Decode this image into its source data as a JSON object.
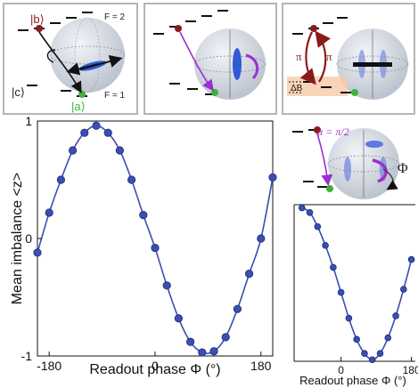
{
  "panel_a": {
    "state_b": "|b⟩",
    "state_c": "|c⟩",
    "state_a": "|a⟩",
    "f2": "F = 2",
    "f1": "F = 1"
  },
  "panel_c": {
    "pi_left": "π",
    "pi_right": "π",
    "delta_b": "ΔB"
  },
  "panel_d": {
    "alpha": "α = π/2",
    "phi": "Φ"
  },
  "colors": {
    "series": "#3a4fb0",
    "state_b": "#8b1a1a",
    "state_a": "#3bb33b",
    "pulse": "#9b30d0"
  },
  "chart_data": [
    {
      "type": "line",
      "title": "",
      "xlabel": "Readout phase Φ (°)",
      "ylabel": "Mean imbalance <z>",
      "xlim": [
        -200,
        200
      ],
      "ylim": [
        -1,
        1
      ],
      "xticks": [
        -180,
        0,
        180
      ],
      "xtick_labels": [
        "-180",
        "0",
        "180"
      ],
      "yticks": [
        1,
        0,
        -1
      ],
      "ytick_labels": [
        "1",
        "0",
        "-1"
      ],
      "series": [
        {
          "marker": "circle",
          "x": [
            -200,
            -180,
            -160,
            -140,
            -120,
            -100,
            -80,
            -60,
            -40,
            -20,
            0,
            20,
            40,
            60,
            80,
            100,
            120,
            140,
            160,
            180,
            200
          ],
          "y": [
            -0.12,
            0.22,
            0.5,
            0.75,
            0.9,
            0.96,
            0.9,
            0.75,
            0.5,
            0.2,
            -0.08,
            -0.4,
            -0.68,
            -0.88,
            -0.97,
            -0.96,
            -0.84,
            -0.6,
            -0.3,
            0.0,
            0.52
          ]
        }
      ]
    },
    {
      "type": "line",
      "title": "",
      "xlabel": "Readout phase Φ (°)",
      "ylabel": "",
      "xlim": [
        -120,
        190
      ],
      "ylim": [
        -1,
        1
      ],
      "xticks": [
        0,
        180
      ],
      "xtick_labels": [
        "0",
        "180"
      ],
      "series": [
        {
          "marker": "circle",
          "x": [
            -100,
            -80,
            -60,
            -40,
            -20,
            0,
            20,
            40,
            60,
            80,
            100,
            120,
            140,
            160,
            180
          ],
          "y": [
            0.96,
            0.9,
            0.72,
            0.48,
            0.2,
            -0.12,
            -0.45,
            -0.72,
            -0.9,
            -0.98,
            -0.9,
            -0.7,
            -0.42,
            -0.08,
            0.3
          ]
        }
      ]
    }
  ]
}
